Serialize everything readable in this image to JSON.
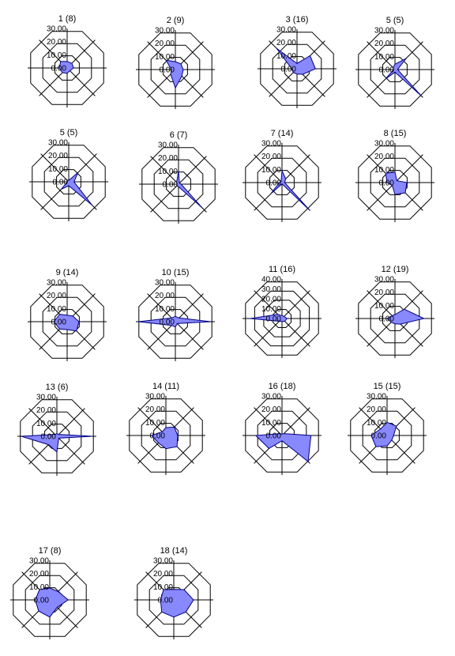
{
  "colors": {
    "fill": "#8888ff",
    "stroke": "#000080",
    "grid": "#000000",
    "background": "#ffffff"
  },
  "chart_data": [
    {
      "type": "radar",
      "title": "1 (8)",
      "ticks": [
        "0.00",
        "10.00",
        "20.00",
        "30.00"
      ],
      "rmax": 30,
      "values": [
        5,
        5,
        5,
        3,
        4,
        5,
        6,
        7
      ]
    },
    {
      "type": "radar",
      "title": "2 (9)",
      "ticks": [
        "0.00",
        "10.00",
        "20.00",
        "30.00"
      ],
      "rmax": 30,
      "values": [
        6,
        6,
        6,
        7,
        14,
        5,
        3,
        10
      ]
    },
    {
      "type": "radar",
      "title": "3 (16)",
      "ticks": [
        "0.00",
        "10.00",
        "20.00",
        "30.00"
      ],
      "rmax": 30,
      "values": [
        4,
        14,
        14,
        6,
        4,
        4,
        4,
        22
      ]
    },
    {
      "type": "radar",
      "title": "5 (5)",
      "ticks": [
        "0.00",
        "10.00",
        "20.00",
        "30.00"
      ],
      "rmax": 30,
      "values": [
        4,
        12,
        2,
        28,
        2,
        10,
        1,
        2
      ]
    },
    {
      "type": "radar",
      "title": "5 (5)",
      "ticks": [
        "0.00",
        "10.00",
        "20.00",
        "30.00"
      ],
      "rmax": 30,
      "values": [
        1,
        10,
        4,
        25,
        3,
        8,
        1,
        2
      ]
    },
    {
      "type": "radar",
      "title": "6 (7)",
      "ticks": [
        "0.00",
        "10.00",
        "20.00",
        "30.00"
      ],
      "rmax": 30,
      "values": [
        10,
        1,
        2,
        25,
        2,
        2,
        1,
        2
      ]
    },
    {
      "type": "radar",
      "title": "7 (14)",
      "ticks": [
        "0.00",
        "10.00",
        "20.00",
        "30.00"
      ],
      "rmax": 30,
      "values": [
        9,
        4,
        2,
        30,
        1,
        12,
        2,
        1
      ]
    },
    {
      "type": "radar",
      "title": "8 (15)",
      "ticks": [
        "0.00",
        "10.00",
        "20.00",
        "30.00"
      ],
      "rmax": 30,
      "values": [
        8,
        2,
        9,
        11,
        9,
        3,
        6,
        10
      ]
    },
    {
      "type": "radar",
      "title": "9 (14)",
      "ticks": [
        "0.00",
        "10.00",
        "20.00",
        "30.00"
      ],
      "rmax": 30,
      "values": [
        5,
        6,
        9,
        10,
        6,
        8,
        10,
        8
      ]
    },
    {
      "type": "radar",
      "title": "10 (15)",
      "ticks": [
        "0.00",
        "10.00",
        "20.00",
        "30.00"
      ],
      "rmax": 30,
      "values": [
        4,
        4,
        27,
        2,
        4,
        4,
        28,
        4
      ]
    },
    {
      "type": "radar",
      "title": "11 (16)",
      "ticks": [
        "0.00",
        "10.00",
        "20.00",
        "30.00",
        "40.00"
      ],
      "rmax": 40,
      "values": [
        3,
        3,
        5,
        4,
        3,
        4,
        32,
        6
      ]
    },
    {
      "type": "radar",
      "title": "12 (19)",
      "ticks": [
        "0.00",
        "10.00",
        "20.00",
        "30.00"
      ],
      "rmax": 30,
      "values": [
        3,
        10,
        22,
        6,
        4,
        4,
        6,
        3
      ]
    },
    {
      "type": "radar",
      "title": "13 (6)",
      "ticks": [
        "0.00",
        "10.00",
        "20.00",
        "30.00"
      ],
      "rmax": 30,
      "values": [
        2,
        2,
        27,
        2,
        12,
        9,
        27,
        2
      ]
    },
    {
      "type": "radar",
      "title": "14 (11)",
      "ticks": [
        "0.00",
        "10.00",
        "20.00",
        "30.00"
      ],
      "rmax": 30,
      "values": [
        6,
        9,
        9,
        12,
        10,
        8,
        11,
        4
      ]
    },
    {
      "type": "radar",
      "title": "16 (18)",
      "ticks": [
        "0.00",
        "10.00",
        "20.00",
        "30.00"
      ],
      "rmax": 30,
      "values": [
        1,
        2,
        22,
        28,
        4,
        14,
        20,
        2
      ]
    },
    {
      "type": "radar",
      "title": "15 (15)",
      "ticks": [
        "0.00",
        "10.00",
        "20.00",
        "30.00"
      ],
      "rmax": 30,
      "values": [
        10,
        10,
        5,
        5,
        8,
        12,
        12,
        7
      ]
    },
    {
      "type": "radar",
      "title": "17 (8)",
      "ticks": [
        "0.00",
        "10.00",
        "20.00",
        "30.00"
      ],
      "rmax": 30,
      "values": [
        9,
        9,
        14,
        8,
        13,
        12,
        11,
        11
      ]
    },
    {
      "type": "radar",
      "title": "18 (14)",
      "ticks": [
        "0.00",
        "10.00",
        "20.00",
        "30.00"
      ],
      "rmax": 30,
      "values": [
        8,
        11,
        15,
        13,
        13,
        13,
        10,
        11
      ]
    }
  ]
}
